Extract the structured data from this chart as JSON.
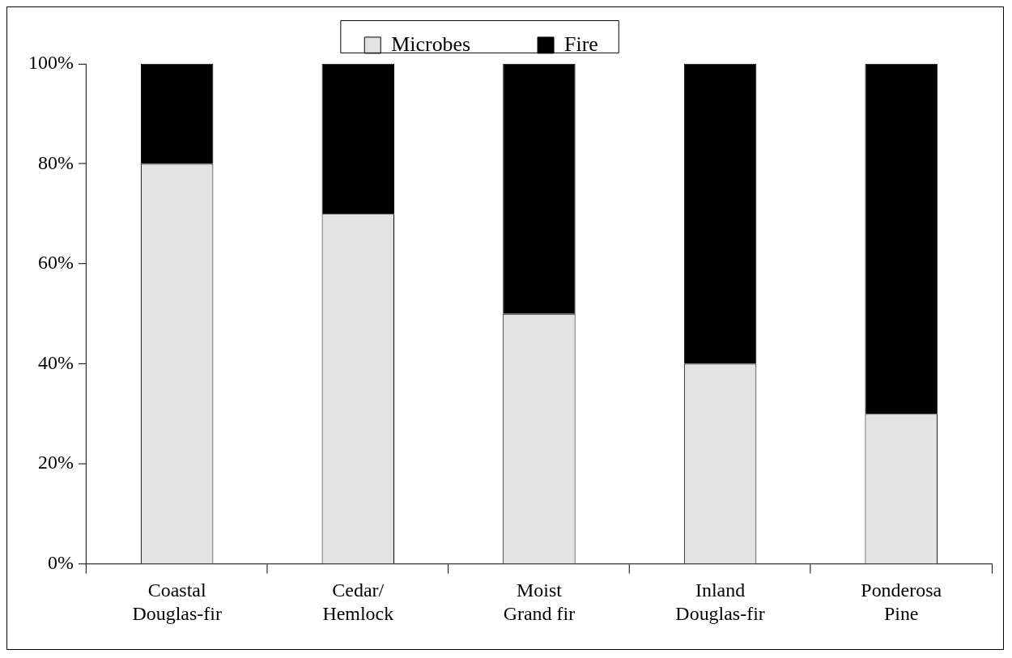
{
  "chart_data": {
    "type": "bar",
    "stacked": true,
    "categories": [
      "Coastal\nDouglas-fir",
      "Cedar/\nHemlock",
      "Moist\nGrand fir",
      "Inland\nDouglas-fir",
      "Ponderosa\nPine"
    ],
    "series": [
      {
        "name": "Microbes",
        "color": "#e3e3e3",
        "values": [
          80,
          70,
          50,
          40,
          30
        ]
      },
      {
        "name": "Fire",
        "color": "#000000",
        "values": [
          20,
          30,
          50,
          60,
          70
        ]
      }
    ],
    "ylim": [
      0,
      100
    ],
    "yticks": [
      {
        "value": 0,
        "label": "0%"
      },
      {
        "value": 20,
        "label": "20%"
      },
      {
        "value": 40,
        "label": "40%"
      },
      {
        "value": 60,
        "label": "60%"
      },
      {
        "value": 80,
        "label": "80%"
      },
      {
        "value": 100,
        "label": "100%"
      }
    ],
    "grid": false,
    "legend": "top"
  }
}
